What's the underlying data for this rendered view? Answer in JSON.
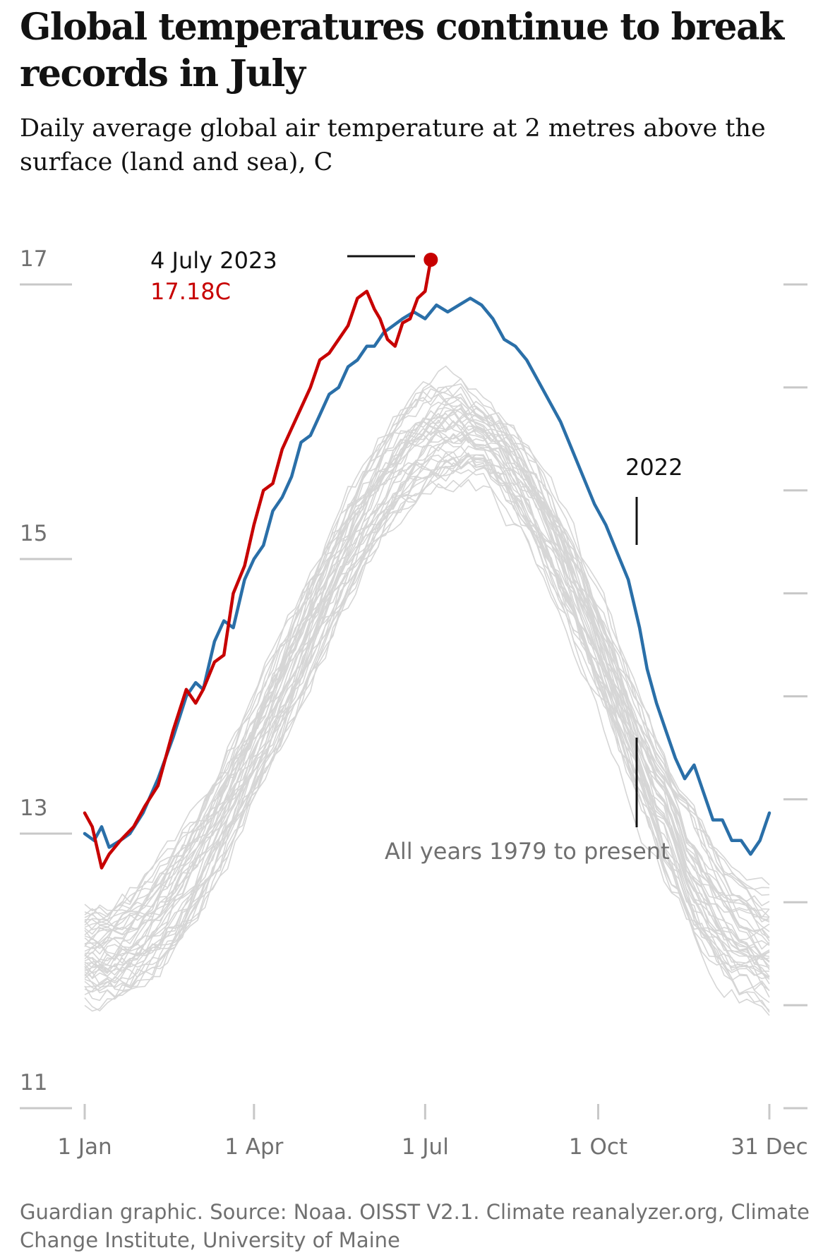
{
  "header": {
    "title": "Global temperatures continue to break records in July",
    "subtitle": "Daily average global air temperature at 2 metres above the surface (land and sea), C"
  },
  "footer": {
    "source": "Guardian graphic. Source: Noaa. OISST V2.1. Climate reanalyzer.org, Climate Change Institute, University of Maine"
  },
  "colors": {
    "record_2023": "#c70000",
    "year_2022": "#2a6fa8",
    "all_years": "#d6d6d6",
    "axis_text": "#707070",
    "gridline": "#c8c8c8"
  },
  "chart_data": {
    "type": "line",
    "title": "Global temperatures continue to break records in July",
    "subtitle": "Daily average global air temperature at 2 metres above the surface (land and sea), C",
    "ylim": [
      11,
      17.2
    ],
    "yticks": [
      11,
      13,
      15,
      17
    ],
    "xticks": [
      {
        "label": "1 Jan",
        "doy": 1
      },
      {
        "label": "1 Apr",
        "doy": 91
      },
      {
        "label": "1 Jul",
        "doy": 182
      },
      {
        "label": "1 Oct",
        "doy": 274
      },
      {
        "label": "31 Dec",
        "doy": 365
      }
    ],
    "annotations": {
      "record_date": "4 July 2023",
      "record_value": "17.18C",
      "label_2022": "2022",
      "label_all_years": "All years 1979 to present"
    },
    "series": [
      {
        "name": "2023",
        "x": [
          1,
          5,
          10,
          14,
          20,
          27,
          33,
          40,
          48,
          55,
          60,
          64,
          70,
          75,
          80,
          86,
          91,
          96,
          101,
          106,
          111,
          116,
          121,
          126,
          131,
          136,
          141,
          146,
          151,
          155,
          158,
          162,
          166,
          170,
          174,
          178,
          182,
          185
        ],
        "y": [
          13.15,
          13.05,
          12.75,
          12.85,
          12.95,
          13.05,
          13.2,
          13.35,
          13.75,
          14.05,
          13.95,
          14.05,
          14.25,
          14.3,
          14.75,
          14.95,
          15.25,
          15.5,
          15.55,
          15.8,
          15.95,
          16.1,
          16.25,
          16.45,
          16.5,
          16.6,
          16.7,
          16.9,
          16.95,
          16.82,
          16.75,
          16.6,
          16.55,
          16.72,
          16.75,
          16.9,
          16.95,
          17.18
        ]
      },
      {
        "name": "2022",
        "x": [
          1,
          6,
          10,
          14,
          20,
          25,
          32,
          40,
          48,
          55,
          60,
          64,
          70,
          75,
          80,
          86,
          91,
          96,
          101,
          106,
          111,
          116,
          121,
          126,
          131,
          136,
          141,
          146,
          151,
          155,
          160,
          165,
          170,
          176,
          182,
          188,
          194,
          200,
          206,
          212,
          218,
          224,
          230,
          236,
          242,
          248,
          254,
          260,
          266,
          272,
          278,
          284,
          290,
          296,
          300,
          305,
          310,
          315,
          320,
          325,
          330,
          335,
          340,
          345,
          350,
          355,
          360,
          365
        ],
        "y": [
          13.0,
          12.95,
          13.05,
          12.9,
          12.95,
          13.0,
          13.15,
          13.4,
          13.7,
          14.0,
          14.1,
          14.05,
          14.4,
          14.55,
          14.5,
          14.85,
          15.0,
          15.1,
          15.35,
          15.45,
          15.6,
          15.85,
          15.9,
          16.05,
          16.2,
          16.25,
          16.4,
          16.45,
          16.55,
          16.55,
          16.65,
          16.7,
          16.75,
          16.8,
          16.75,
          16.85,
          16.8,
          16.85,
          16.9,
          16.85,
          16.75,
          16.6,
          16.55,
          16.45,
          16.3,
          16.15,
          16.0,
          15.8,
          15.6,
          15.4,
          15.25,
          15.05,
          14.85,
          14.5,
          14.2,
          13.95,
          13.75,
          13.55,
          13.4,
          13.5,
          13.3,
          13.1,
          13.1,
          12.95,
          12.95,
          12.85,
          12.95,
          13.15
        ]
      }
    ]
  }
}
